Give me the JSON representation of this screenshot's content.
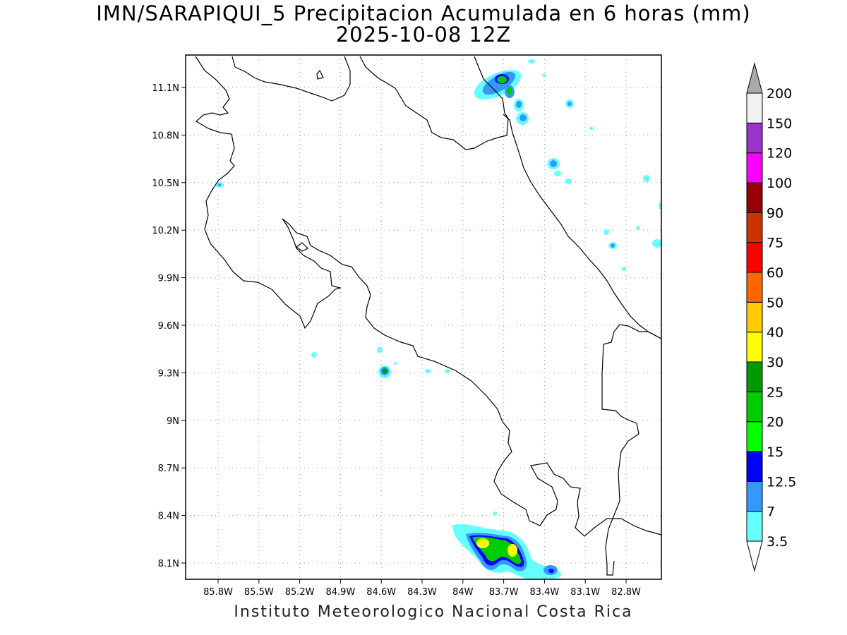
{
  "title_line1": "IMN/SARAPIQUI_5 Precipitacion Acumulada en 6 horas (mm)",
  "title_line2": "2025-10-08 12Z",
  "footer": "Instituto Meteorologico Nacional Costa Rica",
  "map": {
    "lon_range": [
      -86.05,
      -83.0
    ],
    "lat_range": [
      8.0,
      11.3
    ],
    "x_ticks": [
      "85.8W",
      "85.5W",
      "85.2W",
      "84.9W",
      "84.6W",
      "84.3W",
      "84W",
      "83.7W",
      "83.4W",
      "83.1W",
      "82.8W"
    ],
    "y_ticks": [
      "11.1N",
      "10.8N",
      "10.5N",
      "10.2N",
      "9.9N",
      "9.6N",
      "9.3N",
      "9N",
      "8.7N",
      "8.4N",
      "8.1N"
    ],
    "grid": "dotted"
  },
  "colorbar": {
    "labels": [
      "3.5",
      "7",
      "12.5",
      "15",
      "20",
      "25",
      "30",
      "40",
      "50",
      "60",
      "75",
      "90",
      "100",
      "120",
      "150",
      "200"
    ],
    "colors": [
      "#ffffff",
      "#66ffff",
      "#3399ff",
      "#0000ff",
      "#00ff00",
      "#00cc00",
      "#009900",
      "#ffff00",
      "#ffcc00",
      "#ff6600",
      "#ff0000",
      "#cc3300",
      "#990000",
      "#ff00ff",
      "#9933cc",
      "#f2f2f2",
      "#aaaaaa"
    ]
  }
}
